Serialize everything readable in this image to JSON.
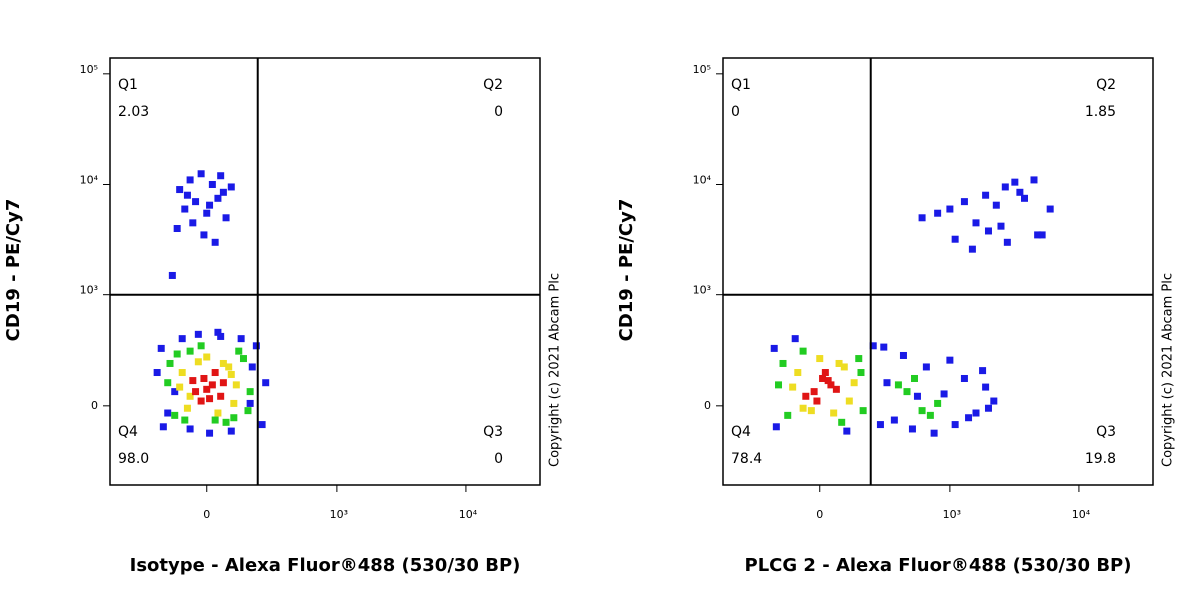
{
  "chart_data": [
    {
      "type": "scatter",
      "scale": "biexponential",
      "x_label": "Isotype - Alexa Fluor®488 (530/30 BP)",
      "y_label": "CD19 - PE/Cy7",
      "copyright": "Copyright (c) 2021 Abcam Plc",
      "xlim": [
        -540,
        37300
      ],
      "ylim": [
        -500,
        139000
      ],
      "xticks": [
        0,
        {
          "value": 1000,
          "label": "10³"
        },
        {
          "value": 10000,
          "label": "10⁴"
        }
      ],
      "yticks": [
        0,
        {
          "value": 1000,
          "label": "10³"
        },
        {
          "value": 10000,
          "label": "10⁴"
        },
        {
          "value": 100000,
          "label": "10⁵"
        }
      ],
      "x_gate": 207,
      "y_gate": 1000,
      "quadrants": {
        "names": [
          "Q1",
          "Q2",
          "Q3",
          "Q4"
        ],
        "values": [
          2.03,
          0,
          0,
          98
        ],
        "value_labels": [
          "2.03",
          "0",
          "0",
          "98.0"
        ]
      },
      "series": [
        {
          "color": "#1a1ae6",
          "x": [
            -100,
            -60,
            -20,
            20,
            60,
            90,
            -80,
            -40,
            0,
            40,
            -110,
            70,
            -10,
            30,
            -70,
            50,
            10,
            -50,
            -130
          ],
          "values": [
            9000,
            11000,
            12500,
            10000,
            8500,
            9500,
            6000,
            7000,
            5500,
            7500,
            4000,
            5000,
            3500,
            3000,
            8000,
            12000,
            6500,
            4500,
            1500
          ]
        },
        {
          "color": "#1a1ae6",
          "x": [
            -180,
            -170,
            200,
            230,
            -90,
            90,
            -200,
            250,
            -30,
            50,
            -150,
            170,
            10,
            -60,
            130,
            -120,
            180,
            40
          ],
          "values": [
            300,
            -90,
            320,
            -80,
            380,
            -110,
            150,
            100,
            420,
            400,
            -30,
            10,
            -120,
            -100,
            380,
            60,
            180,
            440
          ]
        },
        {
          "color": "#22cc22",
          "x": [
            -140,
            -120,
            140,
            160,
            -60,
            70,
            -150,
            170,
            -20,
            30,
            -110,
            120,
            100,
            -80
          ],
          "values": [
            200,
            -40,
            230,
            -20,
            280,
            -70,
            100,
            60,
            320,
            -60,
            260,
            280,
            -50,
            -60
          ]
        },
        {
          "color": "#eedd22",
          "x": [
            -90,
            -70,
            80,
            100,
            -30,
            40,
            -100,
            110,
            0,
            60,
            -60,
            90
          ],
          "values": [
            150,
            -10,
            180,
            10,
            210,
            -30,
            80,
            90,
            240,
            200,
            40,
            140
          ]
        },
        {
          "color": "#e01515",
          "x": [
            -40,
            -10,
            20,
            50,
            -20,
            30,
            0,
            60,
            -50,
            10
          ],
          "values": [
            60,
            120,
            90,
            40,
            20,
            150,
            70,
            100,
            110,
            30
          ]
        }
      ]
    },
    {
      "type": "scatter",
      "scale": "biexponential",
      "x_label": "PLCG 2 - Alexa Fluor®488 (530/30 BP)",
      "y_label": "CD19 - PE/Cy7",
      "copyright": "Copyright (c) 2021 Abcam Plc",
      "xlim": [
        -540,
        37300
      ],
      "ylim": [
        -500,
        139000
      ],
      "xticks": [
        0,
        {
          "value": 1000,
          "label": "10³"
        },
        {
          "value": 10000,
          "label": "10⁴"
        }
      ],
      "yticks": [
        0,
        {
          "value": 1000,
          "label": "10³"
        },
        {
          "value": 10000,
          "label": "10⁴"
        },
        {
          "value": 100000,
          "label": "10⁵"
        }
      ],
      "x_gate": 207,
      "y_gate": 1000,
      "quadrants": {
        "names": [
          "Q1",
          "Q2",
          "Q3",
          "Q4"
        ],
        "values": [
          0,
          1.85,
          19.8,
          78.4
        ],
        "value_labels": [
          "0",
          "1.85",
          "19.8",
          "78.4"
        ]
      },
      "series": [
        {
          "color": "#1a1ae6",
          "x": [
            600,
            800,
            1000,
            1300,
            1600,
            1900,
            2300,
            2700,
            3200,
            3800,
            4500,
            5200,
            6000,
            1100,
            2000,
            2800,
            3500,
            4800,
            1500,
            2500
          ],
          "values": [
            5000,
            5500,
            6000,
            7000,
            4500,
            8000,
            6500,
            9500,
            10500,
            7500,
            11000,
            3500,
            6000,
            3200,
            3800,
            3000,
            8500,
            3500,
            2600,
            4200
          ]
        },
        {
          "color": "#1a1ae6",
          "x": [
            -180,
            -170,
            220,
            260,
            300,
            350,
            420,
            500,
            650,
            900,
            1100,
            1300,
            1600,
            1900,
            2200,
            -90,
            100,
            750,
            1000,
            1400,
            550,
            1800,
            280,
            2000
          ],
          "values": [
            300,
            -90,
            320,
            -80,
            100,
            -60,
            250,
            -100,
            180,
            50,
            -80,
            120,
            -30,
            80,
            20,
            380,
            -110,
            -120,
            220,
            -50,
            40,
            160,
            310,
            -10
          ]
        },
        {
          "color": "#22cc22",
          "x": [
            -140,
            -120,
            150,
            170,
            -60,
            80,
            450,
            600,
            520,
            800,
            700,
            380,
            -160,
            160
          ],
          "values": [
            200,
            -40,
            230,
            -20,
            280,
            -70,
            60,
            -20,
            120,
            10,
            -40,
            90,
            90,
            150
          ]
        },
        {
          "color": "#eedd22",
          "x": [
            -80,
            -60,
            90,
            110,
            0,
            50,
            -100,
            130,
            70,
            -30
          ],
          "values": [
            150,
            -10,
            180,
            20,
            230,
            -30,
            80,
            100,
            200,
            -20
          ]
        },
        {
          "color": "#e01515",
          "x": [
            -20,
            10,
            40,
            -50,
            20,
            60,
            -10,
            30
          ],
          "values": [
            60,
            120,
            90,
            40,
            150,
            70,
            20,
            110
          ]
        }
      ]
    }
  ]
}
